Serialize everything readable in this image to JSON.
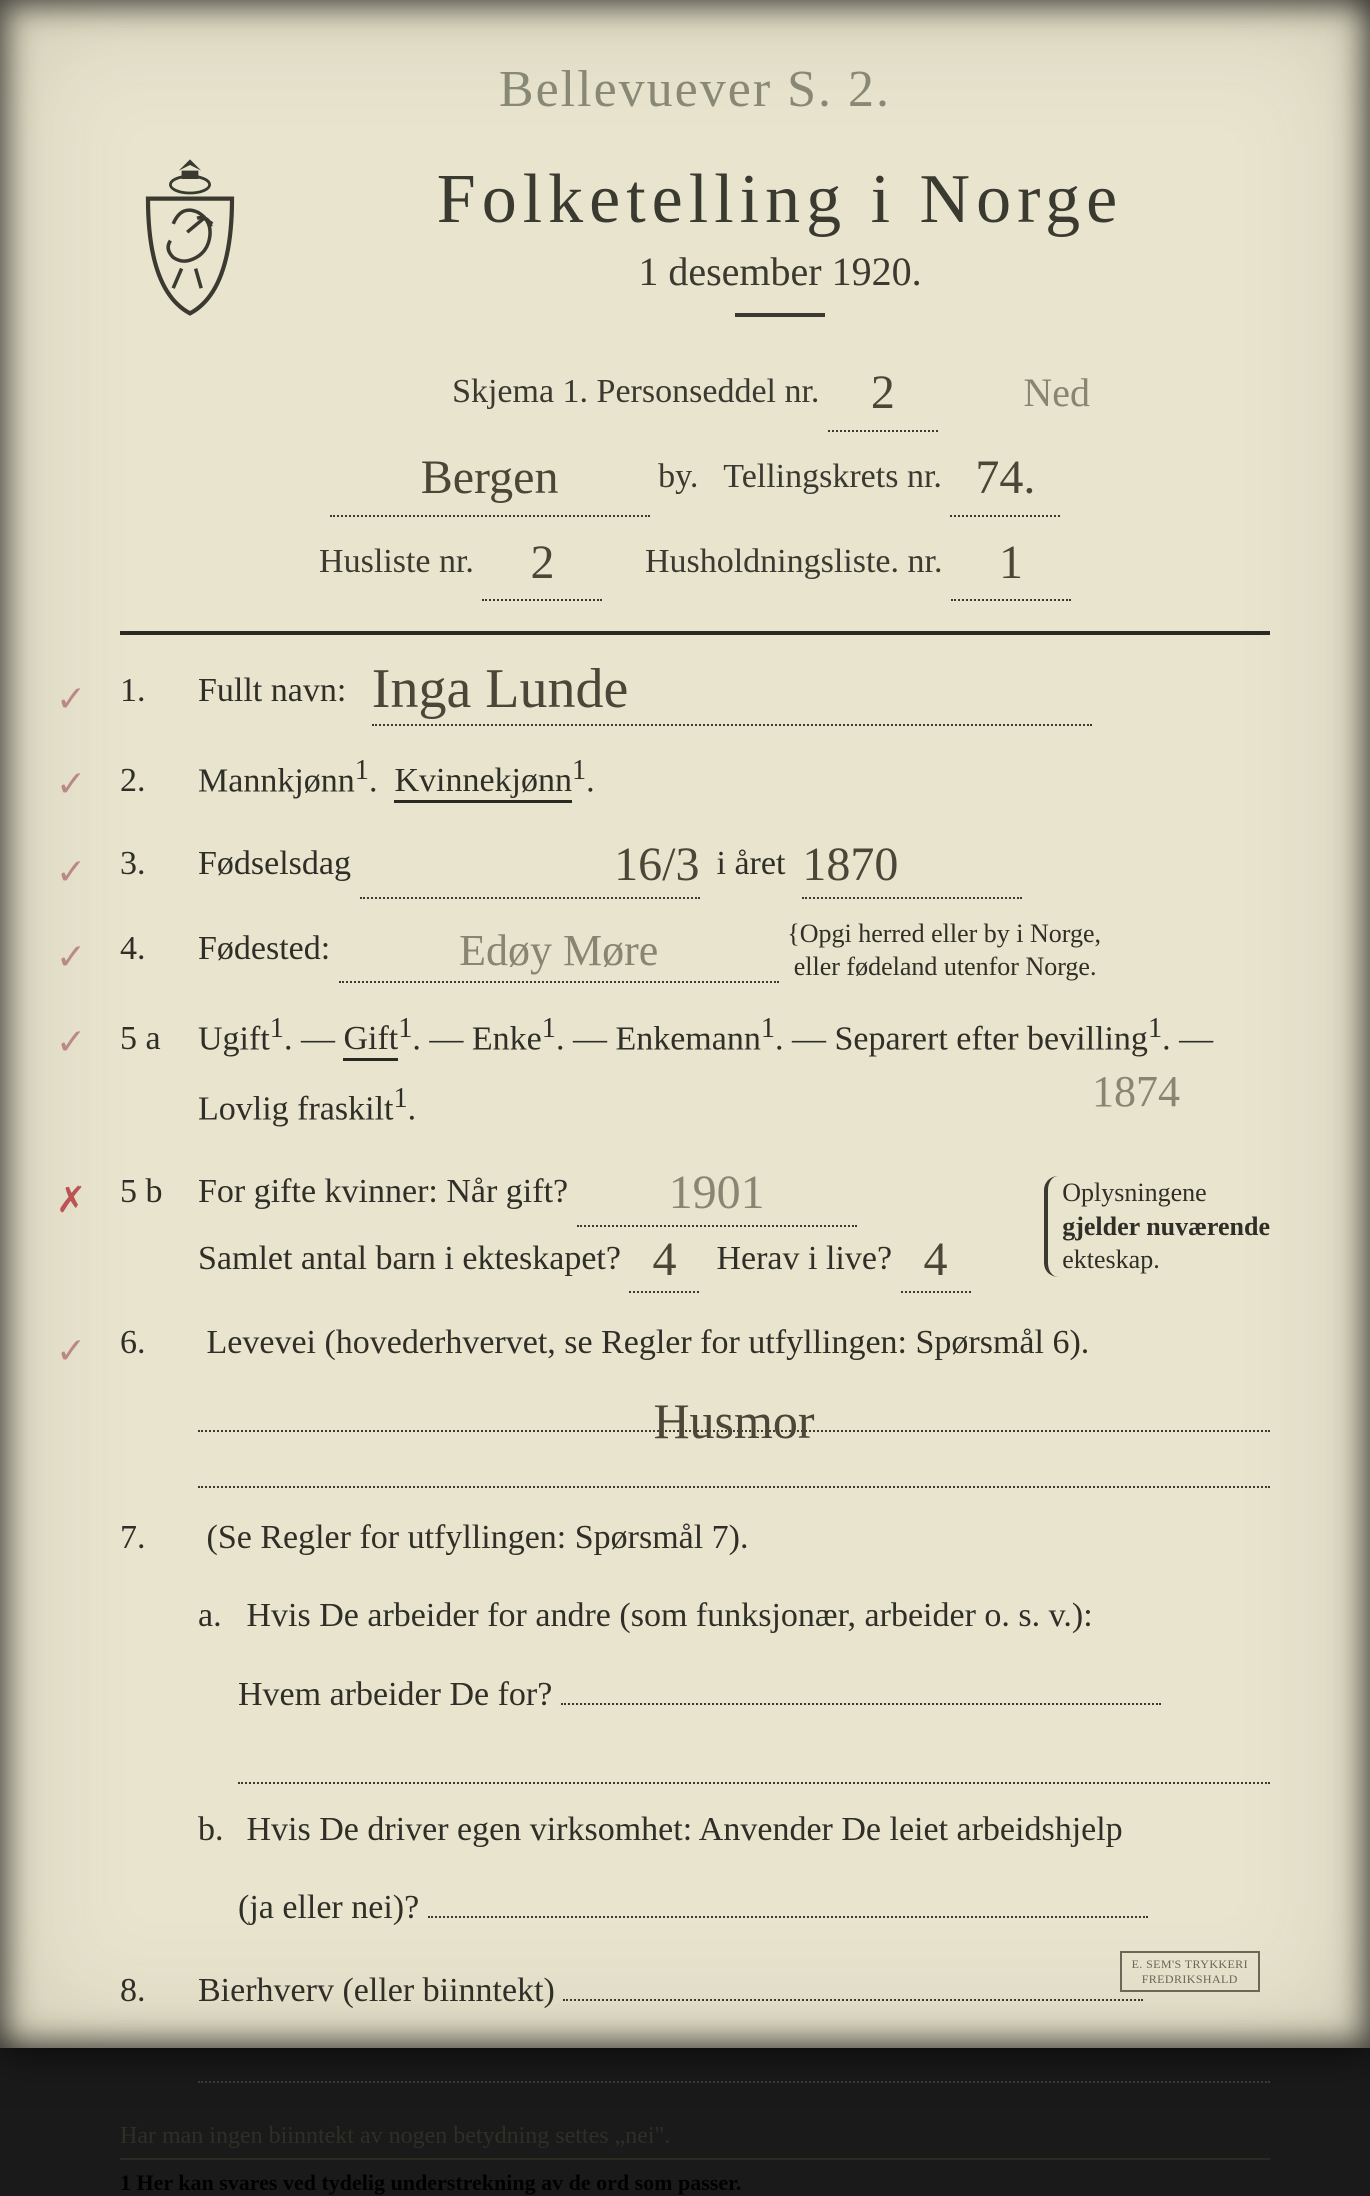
{
  "margin_note": "Bellevuever S. 2.",
  "title": "Folketelling i Norge",
  "date_line": "1 desember 1920.",
  "skjema_label": "Skjema 1. Personseddel nr.",
  "personseddel_nr": "2",
  "personseddel_side": "Ned",
  "by_value": "Bergen",
  "by_label": "by.",
  "tellingskrets_label": "Tellingskrets nr.",
  "tellingskrets_nr": "74.",
  "husliste_label": "Husliste nr.",
  "husliste_nr": "2",
  "husholdning_label": "Husholdningsliste. nr.",
  "husholdning_nr": "1",
  "q1": {
    "num": "1.",
    "label": "Fullt navn:",
    "value": "Inga Lunde",
    "check": "✓"
  },
  "q2": {
    "num": "2.",
    "m": "Mannkjønn",
    "k": "Kvinnekjønn",
    "sup": "1",
    "check": "✓"
  },
  "q3": {
    "num": "3.",
    "label": "Fødselsdag",
    "day": "16/3",
    "mid": "i året",
    "year": "1870",
    "check": "✓"
  },
  "q4": {
    "num": "4.",
    "label": "Fødested:",
    "value": "Edøy Møre",
    "note1": "Opgi herred eller by i Norge,",
    "note2": "eller fødeland utenfor Norge.",
    "check": "✓"
  },
  "q5a": {
    "num": "5 a",
    "opts": [
      "Ugift",
      "Gift",
      "Enke",
      "Enkemann",
      "Separert efter bevilling",
      "Lovlig fraskilt"
    ],
    "sup": "1",
    "underlined_index": 1,
    "check": "✓",
    "margin_year": "1874"
  },
  "q5b": {
    "num": "5 b",
    "line1_label": "For gifte kvinner:  Når gift?",
    "line1_value": "1901",
    "line2_a": "Samlet antal barn i ekteskapet?",
    "line2_a_val": "4",
    "line2_b": "Herav i live?",
    "line2_b_val": "4",
    "brace": [
      "Oplysningene",
      "gjelder nuværende",
      "ekteskap."
    ],
    "check": "✗"
  },
  "q6": {
    "num": "6.",
    "label": "Levevei (hovederhvervet, se Regler for utfyllingen: Spørsmål 6).",
    "value": "Husmor",
    "check": "✓"
  },
  "q7": {
    "num": "7.",
    "intro": "(Se Regler for utfyllingen:  Spørsmål 7).",
    "a_label": "a.",
    "a_text1": "Hvis De arbeider for andre (som funksjonær, arbeider o. s. v.):",
    "a_text2": "Hvem arbeider De for?",
    "b_label": "b.",
    "b_text1": "Hvis De driver egen virksomhet:  Anvender De leiet arbeidshjelp",
    "b_text2": "(ja eller nei)?"
  },
  "q8": {
    "num": "8.",
    "label": "Bierhverv (eller biinntekt)"
  },
  "footnote_top": "Har man ingen biinntekt av nogen betydning settes „nei\".",
  "footnote_bottom": "1   Her kan svares ved tydelig understrekning av de ord som passer.",
  "stamp": "E. SEM'S TRYKKERI\nFREDRIKSHALD",
  "colors": {
    "paper": "#e8e4ce",
    "print": "#3a3a30",
    "ink": "#4a4638",
    "faded": "#8a8572"
  }
}
